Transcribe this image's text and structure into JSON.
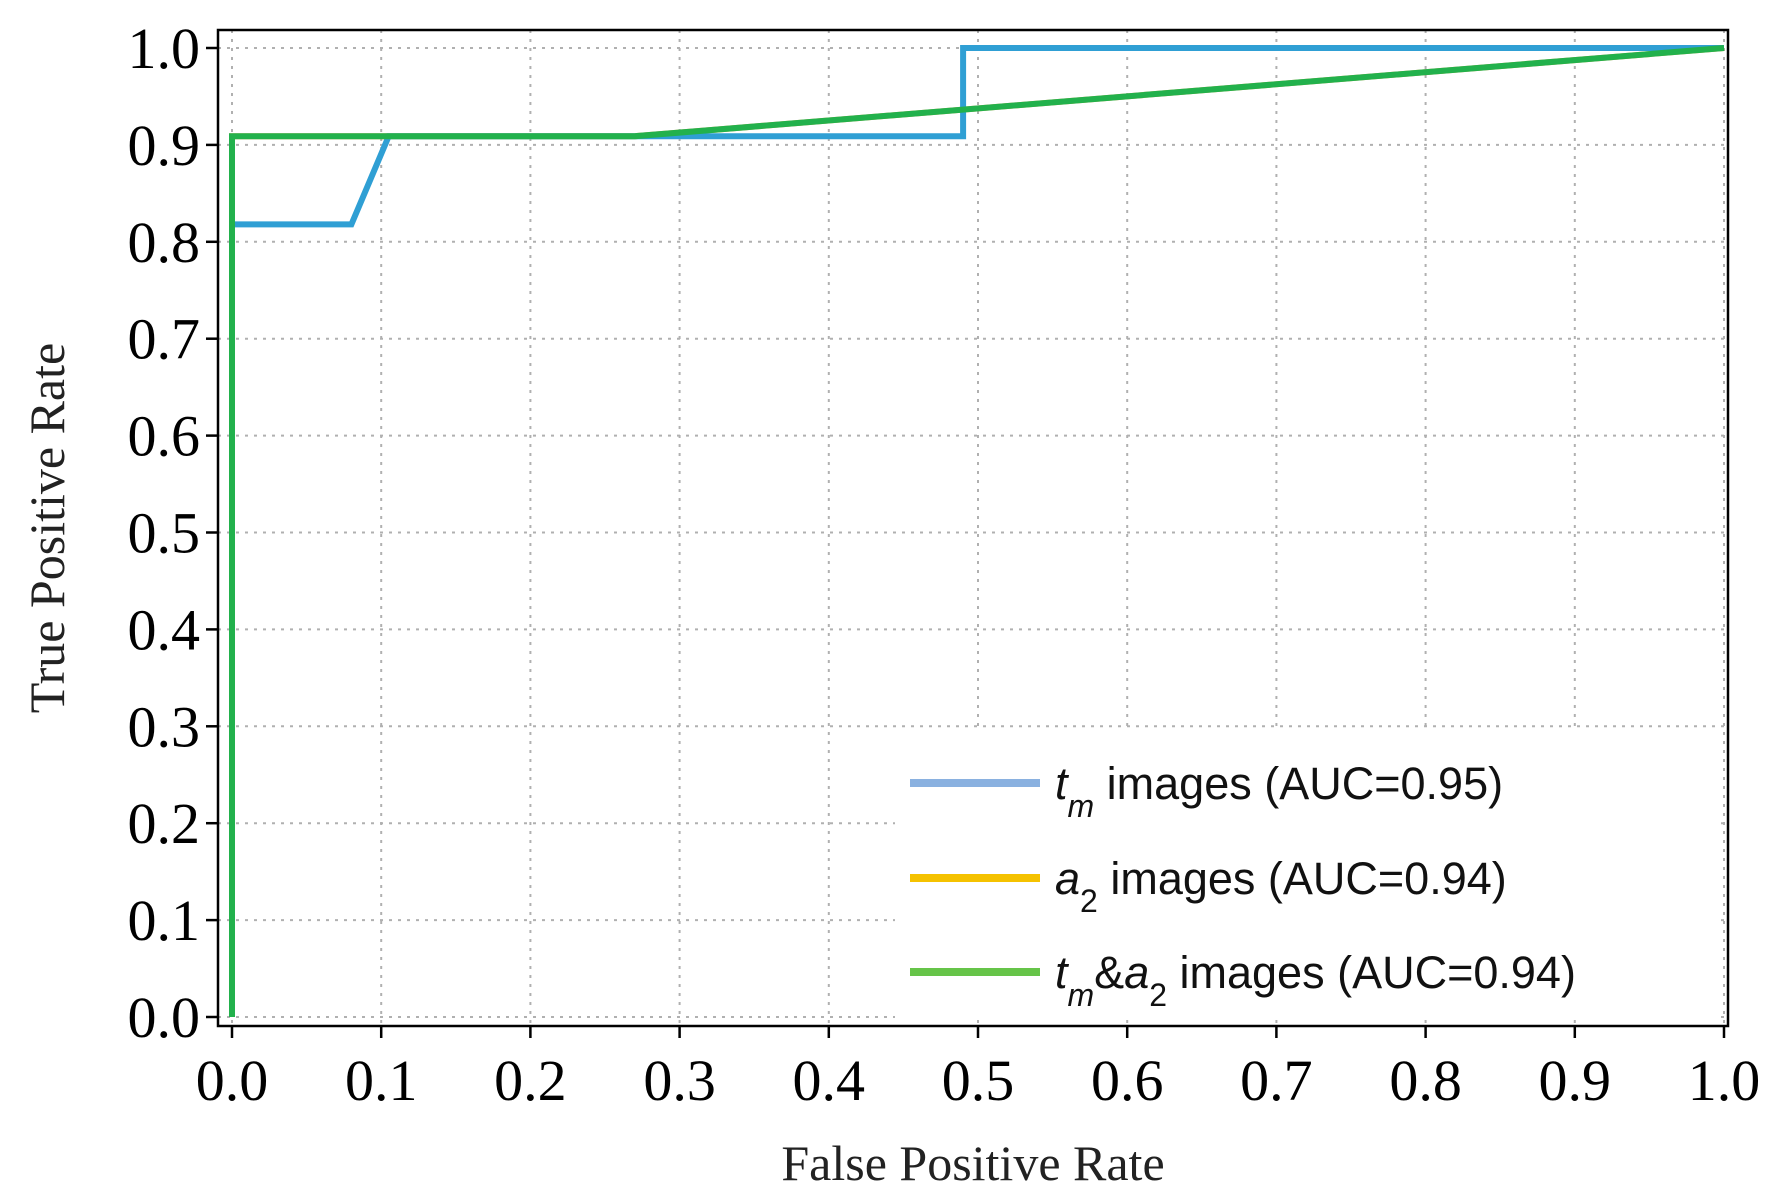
{
  "chart_data": {
    "type": "line",
    "title": "",
    "xlabel": "False Positive Rate",
    "ylabel": "True Positive Rate",
    "xlim": [
      0.0,
      1.0
    ],
    "ylim": [
      0.0,
      1.0
    ],
    "xticks": [
      "0.0",
      "0.1",
      "0.2",
      "0.3",
      "0.4",
      "0.5",
      "0.6",
      "0.7",
      "0.8",
      "0.9",
      "1.0"
    ],
    "yticks": [
      "0.0",
      "0.1",
      "0.2",
      "0.3",
      "0.4",
      "0.5",
      "0.6",
      "0.7",
      "0.8",
      "0.9",
      "1.0"
    ],
    "grid": true,
    "legend_position": "bottom-right",
    "series": [
      {
        "name": "images (AUC=0.95)",
        "legend_prefix": [
          {
            "t": "t",
            "italic": true
          },
          {
            "t": "m",
            "italic": true,
            "sub": true
          }
        ],
        "legend_color": "#8ab1e0",
        "color": "#2f9fd4",
        "x": [
          0.0,
          0.0,
          0.08,
          0.105,
          0.49,
          0.49,
          1.0
        ],
        "y": [
          0.0,
          0.818,
          0.818,
          0.909,
          0.909,
          1.0,
          1.0
        ]
      },
      {
        "name": "images (AUC=0.94)",
        "legend_prefix": [
          {
            "t": "a",
            "italic": true
          },
          {
            "t": "2",
            "italic": false,
            "sub": true
          }
        ],
        "legend_color": "#f5c200",
        "color": "#f5a040",
        "x": [
          0.0,
          0.0,
          0.27,
          1.0
        ],
        "y": [
          0.0,
          0.909,
          0.909,
          1.0
        ]
      },
      {
        "name": "images (AUC=0.94)",
        "legend_prefix": [
          {
            "t": "t",
            "italic": true
          },
          {
            "t": "m",
            "italic": true,
            "sub": true
          },
          {
            "t": "&",
            "italic": false
          },
          {
            "t": "a",
            "italic": true
          },
          {
            "t": "2",
            "italic": false,
            "sub": true
          }
        ],
        "legend_color": "#66c449",
        "color": "#22b14c",
        "x": [
          0.0,
          0.0,
          0.27,
          1.0
        ],
        "y": [
          0.0,
          0.909,
          0.909,
          1.0
        ]
      }
    ]
  }
}
